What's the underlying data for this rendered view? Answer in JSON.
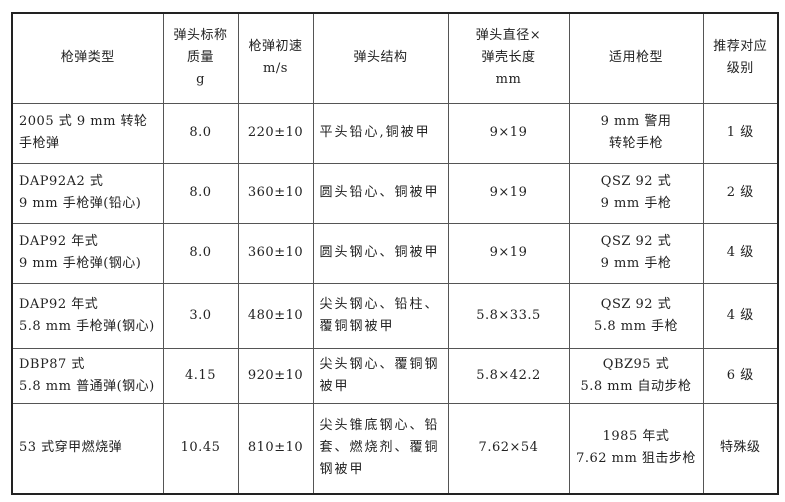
{
  "table": {
    "headers": [
      [
        "枪弹类型"
      ],
      [
        "弹头标称",
        "质量",
        "g"
      ],
      [
        "枪弹初速",
        "m/s"
      ],
      [
        "弹头结构"
      ],
      [
        "弹头直径×",
        "弹壳长度",
        "mm"
      ],
      [
        "适用枪型"
      ],
      [
        "推荐对应",
        "级别"
      ]
    ],
    "rows": [
      {
        "type": [
          "2005 式 9 mm 转轮",
          "手枪弹"
        ],
        "mass": "8.0",
        "velocity": "220±10",
        "structure": [
          "平头铅心,铜被甲"
        ],
        "size": "9×19",
        "gun": [
          "9 mm 警用",
          "转轮手枪"
        ],
        "level": "1 级"
      },
      {
        "type": [
          "DAP92A2 式",
          "9 mm 手枪弹(铅心)"
        ],
        "mass": "8.0",
        "velocity": "360±10",
        "structure": [
          "圆头铅心、铜被甲"
        ],
        "size": "9×19",
        "gun": [
          "QSZ 92 式",
          "9 mm 手枪"
        ],
        "level": "2 级"
      },
      {
        "type": [
          "DAP92 年式",
          "9 mm 手枪弹(钢心)"
        ],
        "mass": "8.0",
        "velocity": "360±10",
        "structure": [
          "圆头钢心、铜被甲"
        ],
        "size": "9×19",
        "gun": [
          "QSZ 92 式",
          "9 mm 手枪"
        ],
        "level": "4 级"
      },
      {
        "type": [
          "DAP92 年式",
          "5.8 mm 手枪弹(钢心)"
        ],
        "mass": "3.0",
        "velocity": "480±10",
        "structure": [
          "尖头钢心、铅柱、",
          "覆铜钢被甲"
        ],
        "size": "5.8×33.5",
        "gun": [
          "QSZ 92 式",
          "5.8 mm 手枪"
        ],
        "level": "4 级"
      },
      {
        "type": [
          "DBP87 式",
          "5.8 mm 普通弹(钢心)"
        ],
        "mass": "4.15",
        "velocity": "920±10",
        "structure": [
          "尖头钢心、覆铜钢",
          "被甲"
        ],
        "size": "5.8×42.2",
        "gun": [
          "QBZ95 式",
          "5.8 mm 自动步枪"
        ],
        "level": "6 级"
      },
      {
        "type": [
          "53 式穿甲燃烧弹"
        ],
        "mass": "10.45",
        "velocity": "810±10",
        "structure": [
          "尖头锥底钢心、铅",
          "套、燃烧剂、覆铜",
          "钢被甲"
        ],
        "size": "7.62×54",
        "gun": [
          "1985 年式",
          "7.62 mm 狙击步枪"
        ],
        "level": "特殊级"
      }
    ]
  }
}
